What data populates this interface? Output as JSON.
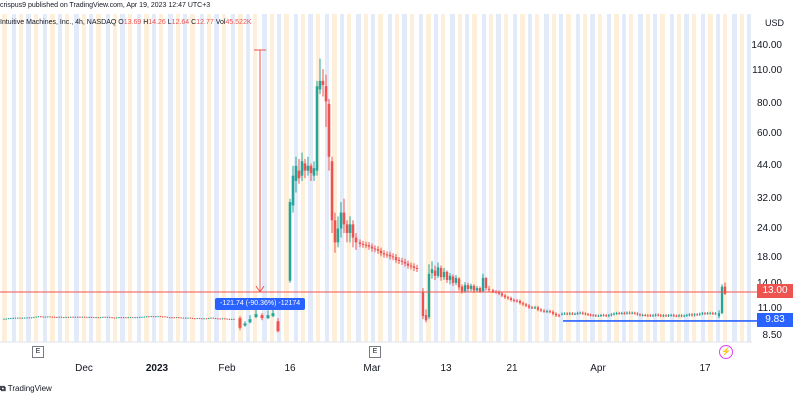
{
  "header": {
    "published": "crispus9 published on TradingView.com, Apr 19, 2023 12:47 UTC+3",
    "symbol": "Intuitive Machines, Inc., 4h, NASDAQ",
    "o_label": "O",
    "o_value": "13.69",
    "h_label": "H",
    "h_value": "14.26",
    "l_label": "L",
    "l_value": "12.64",
    "c_label": "C",
    "c_value": "12.77",
    "vol_label": "Vol",
    "vol_value": "45.522K"
  },
  "axis": {
    "currency": "USD",
    "y_ticks": [
      "140.00",
      "110.00",
      "80.00",
      "60.00",
      "44.00",
      "32.00",
      "24.00",
      "18.00",
      "14.00",
      "11.00",
      "8.50"
    ],
    "x_ticks": [
      {
        "label": "Dec",
        "bold": false
      },
      {
        "label": "2023",
        "bold": true
      },
      {
        "label": "Feb",
        "bold": false
      },
      {
        "label": "16",
        "bold": false
      },
      {
        "label": "Mar",
        "bold": false
      },
      {
        "label": "13",
        "bold": false
      },
      {
        "label": "21",
        "bold": false
      },
      {
        "label": "Apr",
        "bold": false
      },
      {
        "label": "17",
        "bold": false
      }
    ]
  },
  "badges": {
    "price_red": "13.00",
    "price_blue": "9.83"
  },
  "measure": {
    "label": "-121.74 (-90.36%) -12174"
  },
  "event_markers": [
    "E",
    "E"
  ],
  "footer": {
    "logo_text": "TradingView"
  },
  "colors": {
    "up": "#26a69a",
    "down": "#ef5350",
    "accent": "#2962ff",
    "session_a": "#fdefd9",
    "session_b": "#e3ebf8"
  },
  "chart_data": {
    "type": "candlestick",
    "symbol": "Intuitive Machines, Inc.",
    "interval": "4h",
    "exchange": "NASDAQ",
    "currency": "USD",
    "scale": "log",
    "ylim": [
      8.5,
      140
    ],
    "last_ohlc": {
      "open": 13.69,
      "high": 14.26,
      "low": 12.64,
      "close": 12.77
    },
    "volume": "45.522K",
    "horizontal_lines": [
      {
        "value": 13.0,
        "color": "#ef5350"
      },
      {
        "value": 9.83,
        "color": "#2962ff"
      }
    ],
    "measurement": {
      "change": -121.74,
      "percent": -90.36,
      "ticks": -12174
    },
    "approx_path": [
      {
        "date": "Dec",
        "close": 10.0
      },
      {
        "date": "2023",
        "close": 10.05
      },
      {
        "date": "Feb",
        "close": 10.1
      },
      {
        "date": "Feb 14",
        "close": 14.5
      },
      {
        "date": "Feb 16",
        "close": 42
      },
      {
        "date": "Feb 21",
        "close": 100
      },
      {
        "date": "Feb 24",
        "close": 28
      },
      {
        "date": "Mar",
        "close": 18
      },
      {
        "date": "Mar 13",
        "close": 14
      },
      {
        "date": "Mar 21",
        "close": 11.5
      },
      {
        "date": "Apr",
        "close": 10.4
      },
      {
        "date": "Apr 17",
        "close": 10.2
      },
      {
        "date": "Apr 19",
        "close": 12.77
      }
    ]
  }
}
